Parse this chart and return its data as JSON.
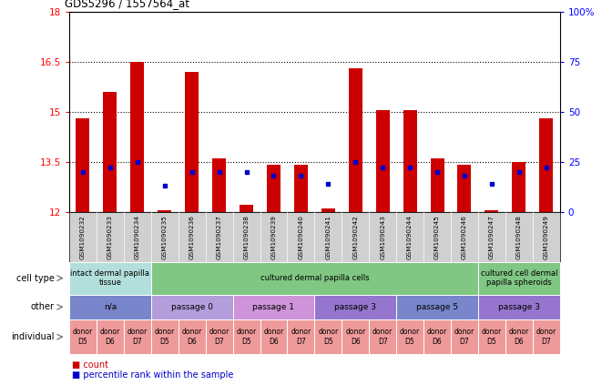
{
  "title": "GDS5296 / 1557564_at",
  "samples": [
    "GSM1090232",
    "GSM1090233",
    "GSM1090234",
    "GSM1090235",
    "GSM1090236",
    "GSM1090237",
    "GSM1090238",
    "GSM1090239",
    "GSM1090240",
    "GSM1090241",
    "GSM1090242",
    "GSM1090243",
    "GSM1090244",
    "GSM1090245",
    "GSM1090246",
    "GSM1090247",
    "GSM1090248",
    "GSM1090249"
  ],
  "count_values": [
    14.8,
    15.6,
    16.5,
    12.05,
    16.2,
    13.6,
    12.2,
    13.4,
    13.4,
    12.1,
    16.3,
    15.05,
    15.05,
    13.6,
    13.4,
    12.05,
    13.5,
    14.8
  ],
  "percentile_values": [
    20,
    22,
    25,
    13,
    20,
    20,
    20,
    18,
    18,
    14,
    25,
    22,
    22,
    20,
    18,
    14,
    20,
    22
  ],
  "ymin": 12,
  "ymax": 18,
  "yticks": [
    12,
    13.5,
    15,
    16.5,
    18
  ],
  "ytick_labels": [
    "12",
    "13.5",
    "15",
    "16.5",
    "18"
  ],
  "y2ticks": [
    0,
    25,
    50,
    75,
    100
  ],
  "y2tick_labels": [
    "0",
    "25",
    "50",
    "75",
    "100%"
  ],
  "cell_type_groups": [
    {
      "label": "intact dermal papilla\ntissue",
      "start": 0,
      "end": 3,
      "color": "#b2dfdb"
    },
    {
      "label": "cultured dermal papilla cells",
      "start": 3,
      "end": 15,
      "color": "#81c784"
    },
    {
      "label": "cultured cell dermal\npapilla spheroids",
      "start": 15,
      "end": 18,
      "color": "#81c784"
    }
  ],
  "other_groups": [
    {
      "label": "n/a",
      "start": 0,
      "end": 3,
      "color": "#7986cb"
    },
    {
      "label": "passage 0",
      "start": 3,
      "end": 6,
      "color": "#b39ddb"
    },
    {
      "label": "passage 1",
      "start": 6,
      "end": 9,
      "color": "#ce93d8"
    },
    {
      "label": "passage 3",
      "start": 9,
      "end": 12,
      "color": "#9575cd"
    },
    {
      "label": "passage 5",
      "start": 12,
      "end": 15,
      "color": "#7986cb"
    },
    {
      "label": "passage 3",
      "start": 15,
      "end": 18,
      "color": "#9575cd"
    }
  ],
  "individual_groups": [
    {
      "label": "donor\nD5",
      "start": 0,
      "end": 1,
      "color": "#ef9a9a"
    },
    {
      "label": "donor\nD6",
      "start": 1,
      "end": 2,
      "color": "#ef9a9a"
    },
    {
      "label": "donor\nD7",
      "start": 2,
      "end": 3,
      "color": "#ef9a9a"
    },
    {
      "label": "donor\nD5",
      "start": 3,
      "end": 4,
      "color": "#ef9a9a"
    },
    {
      "label": "donor\nD6",
      "start": 4,
      "end": 5,
      "color": "#ef9a9a"
    },
    {
      "label": "donor\nD7",
      "start": 5,
      "end": 6,
      "color": "#ef9a9a"
    },
    {
      "label": "donor\nD5",
      "start": 6,
      "end": 7,
      "color": "#ef9a9a"
    },
    {
      "label": "donor\nD6",
      "start": 7,
      "end": 8,
      "color": "#ef9a9a"
    },
    {
      "label": "donor\nD7",
      "start": 8,
      "end": 9,
      "color": "#ef9a9a"
    },
    {
      "label": "donor\nD5",
      "start": 9,
      "end": 10,
      "color": "#ef9a9a"
    },
    {
      "label": "donor\nD6",
      "start": 10,
      "end": 11,
      "color": "#ef9a9a"
    },
    {
      "label": "donor\nD7",
      "start": 11,
      "end": 12,
      "color": "#ef9a9a"
    },
    {
      "label": "donor\nD5",
      "start": 12,
      "end": 13,
      "color": "#ef9a9a"
    },
    {
      "label": "donor\nD6",
      "start": 13,
      "end": 14,
      "color": "#ef9a9a"
    },
    {
      "label": "donor\nD7",
      "start": 14,
      "end": 15,
      "color": "#ef9a9a"
    },
    {
      "label": "donor\nD5",
      "start": 15,
      "end": 16,
      "color": "#ef9a9a"
    },
    {
      "label": "donor\nD6",
      "start": 16,
      "end": 17,
      "color": "#ef9a9a"
    },
    {
      "label": "donor\nD7",
      "start": 17,
      "end": 18,
      "color": "#ef9a9a"
    }
  ],
  "bar_color": "#cc0000",
  "dot_color": "#0000cc",
  "bar_width": 0.5,
  "row_labels": [
    "cell type",
    "other",
    "individual"
  ],
  "legend_items": [
    {
      "color": "#cc0000",
      "label": "count"
    },
    {
      "color": "#0000cc",
      "label": "percentile rank within the sample"
    }
  ],
  "sample_bg_color": "#d0d0d0",
  "fig_width": 6.61,
  "fig_height": 4.23
}
